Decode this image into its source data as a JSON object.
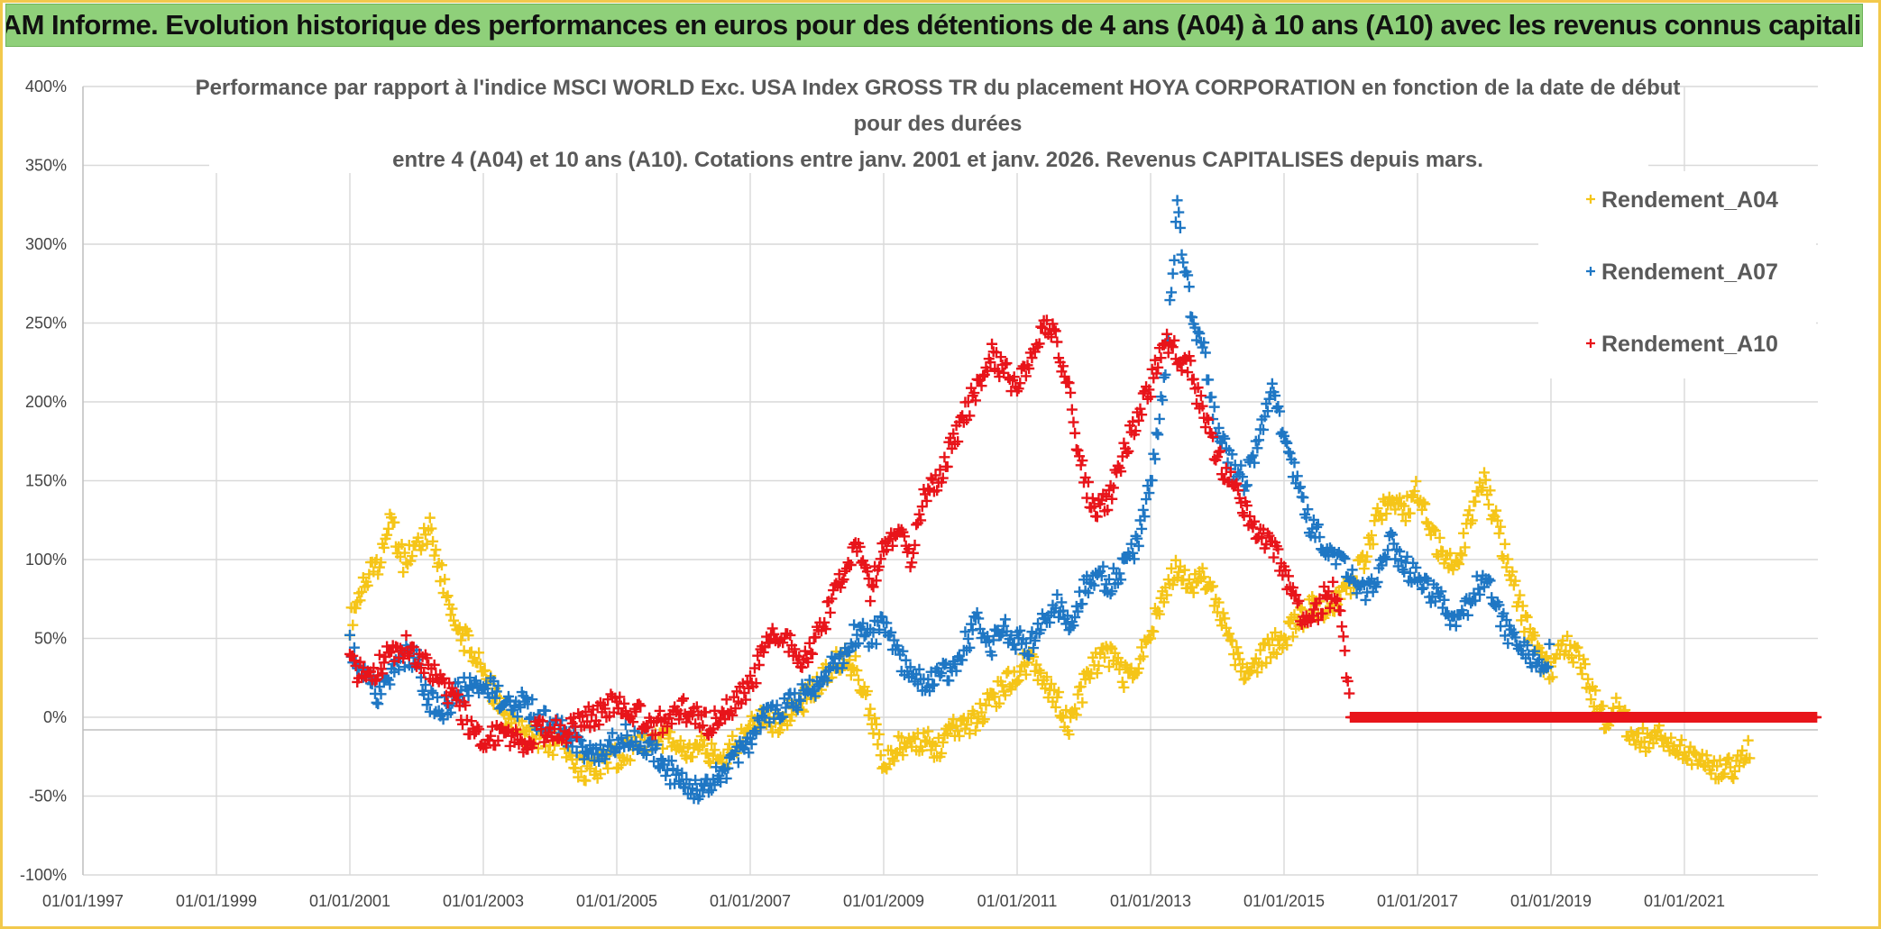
{
  "banner": {
    "text": "ADAM Informe. Evolution historique des performances en euros pour des détentions de 4 ans (A04) à 10 ans (A10) avec les revenus connus capitalisés"
  },
  "chart_data": {
    "type": "scatter",
    "title_lines": [
      "Performance par rapport à l'indice MSCI WORLD Exc. USA Index GROSS TR  du placement HOYA CORPORATION en fonction de la date de début",
      "pour des durées",
      "entre 4 (A04) et 10 ans (A10). Cotations entre janv. 2001 et janv. 2026. Revenus CAPITALISES depuis mars."
    ],
    "x_ticks": [
      "01/01/1997",
      "01/01/1999",
      "01/01/2001",
      "01/01/2003",
      "01/01/2005",
      "01/01/2007",
      "01/01/2009",
      "01/01/2011",
      "01/01/2013",
      "01/01/2015",
      "01/01/2017",
      "01/01/2019",
      "01/01/2021"
    ],
    "y_ticks": [
      "400%",
      "350%",
      "300%",
      "250%",
      "200%",
      "150%",
      "100%",
      "50%",
      "0%",
      "-50%",
      "-100%"
    ],
    "xlim": [
      1997.0,
      2023.0
    ],
    "ylim": [
      -100,
      400
    ],
    "grid": true,
    "legend_position": "top-right",
    "series": [
      {
        "name": "Rendement_A04",
        "color": "#f5c518",
        "marker": "+",
        "points": [
          [
            2001.0,
            60
          ],
          [
            2001.2,
            85
          ],
          [
            2001.4,
            95
          ],
          [
            2001.6,
            125
          ],
          [
            2001.8,
            100
          ],
          [
            2002.0,
            105
          ],
          [
            2002.2,
            120
          ],
          [
            2002.4,
            85
          ],
          [
            2002.6,
            55
          ],
          [
            2002.8,
            45
          ],
          [
            2003.0,
            30
          ],
          [
            2003.2,
            10
          ],
          [
            2003.4,
            -5
          ],
          [
            2003.6,
            -10
          ],
          [
            2003.8,
            -12
          ],
          [
            2004.0,
            -15
          ],
          [
            2004.2,
            -20
          ],
          [
            2004.4,
            -30
          ],
          [
            2004.6,
            -35
          ],
          [
            2004.8,
            -30
          ],
          [
            2005.0,
            -25
          ],
          [
            2005.2,
            -20
          ],
          [
            2005.4,
            -18
          ],
          [
            2005.6,
            -10
          ],
          [
            2005.8,
            -15
          ],
          [
            2006.0,
            -20
          ],
          [
            2006.2,
            -18
          ],
          [
            2006.4,
            -22
          ],
          [
            2006.6,
            -25
          ],
          [
            2006.8,
            -15
          ],
          [
            2007.0,
            -5
          ],
          [
            2007.2,
            0
          ],
          [
            2007.4,
            -5
          ],
          [
            2007.6,
            5
          ],
          [
            2007.8,
            10
          ],
          [
            2008.0,
            20
          ],
          [
            2008.2,
            30
          ],
          [
            2008.4,
            40
          ],
          [
            2008.6,
            30
          ],
          [
            2008.8,
            5
          ],
          [
            2009.0,
            -30
          ],
          [
            2009.2,
            -20
          ],
          [
            2009.4,
            -18
          ],
          [
            2009.6,
            -15
          ],
          [
            2009.8,
            -20
          ],
          [
            2010.0,
            -10
          ],
          [
            2010.2,
            -5
          ],
          [
            2010.4,
            0
          ],
          [
            2010.6,
            10
          ],
          [
            2010.8,
            20
          ],
          [
            2011.0,
            30
          ],
          [
            2011.2,
            35
          ],
          [
            2011.4,
            20
          ],
          [
            2011.6,
            10
          ],
          [
            2011.8,
            -5
          ],
          [
            2012.0,
            20
          ],
          [
            2012.2,
            35
          ],
          [
            2012.4,
            40
          ],
          [
            2012.6,
            25
          ],
          [
            2012.8,
            30
          ],
          [
            2013.0,
            55
          ],
          [
            2013.2,
            80
          ],
          [
            2013.4,
            95
          ],
          [
            2013.6,
            85
          ],
          [
            2013.8,
            90
          ],
          [
            2014.0,
            70
          ],
          [
            2014.2,
            45
          ],
          [
            2014.4,
            30
          ],
          [
            2014.6,
            35
          ],
          [
            2014.8,
            45
          ],
          [
            2015.0,
            50
          ],
          [
            2015.2,
            60
          ],
          [
            2015.4,
            70
          ],
          [
            2015.6,
            65
          ],
          [
            2015.8,
            75
          ],
          [
            2016.0,
            85
          ],
          [
            2016.2,
            100
          ],
          [
            2016.4,
            125
          ],
          [
            2016.6,
            140
          ],
          [
            2016.8,
            130
          ],
          [
            2017.0,
            145
          ],
          [
            2017.2,
            120
          ],
          [
            2017.4,
            100
          ],
          [
            2017.6,
            95
          ],
          [
            2017.8,
            130
          ],
          [
            2018.0,
            150
          ],
          [
            2018.2,
            120
          ],
          [
            2018.4,
            90
          ],
          [
            2018.6,
            60
          ],
          [
            2018.8,
            40
          ],
          [
            2019.0,
            30
          ],
          [
            2019.2,
            45
          ],
          [
            2019.4,
            40
          ],
          [
            2019.6,
            15
          ],
          [
            2019.8,
            0
          ],
          [
            2020.0,
            5
          ],
          [
            2020.2,
            -10
          ],
          [
            2020.4,
            -15
          ],
          [
            2020.6,
            -10
          ],
          [
            2020.8,
            -20
          ],
          [
            2021.0,
            -20
          ],
          [
            2021.2,
            -25
          ],
          [
            2021.4,
            -30
          ],
          [
            2021.6,
            -35
          ],
          [
            2021.8,
            -30
          ],
          [
            2022.0,
            -20
          ]
        ]
      },
      {
        "name": "Rendement_A07",
        "color": "#1f77c4",
        "marker": "+",
        "points": [
          [
            2001.0,
            45
          ],
          [
            2001.2,
            30
          ],
          [
            2001.4,
            15
          ],
          [
            2001.6,
            25
          ],
          [
            2001.8,
            40
          ],
          [
            2002.0,
            35
          ],
          [
            2002.2,
            10
          ],
          [
            2002.4,
            5
          ],
          [
            2002.6,
            15
          ],
          [
            2002.8,
            20
          ],
          [
            2003.0,
            25
          ],
          [
            2003.2,
            15
          ],
          [
            2003.4,
            5
          ],
          [
            2003.6,
            10
          ],
          [
            2003.8,
            0
          ],
          [
            2004.0,
            -5
          ],
          [
            2004.2,
            -10
          ],
          [
            2004.4,
            -15
          ],
          [
            2004.6,
            -25
          ],
          [
            2004.8,
            -20
          ],
          [
            2005.0,
            -15
          ],
          [
            2005.2,
            -10
          ],
          [
            2005.4,
            -15
          ],
          [
            2005.6,
            -25
          ],
          [
            2005.8,
            -35
          ],
          [
            2006.0,
            -40
          ],
          [
            2006.2,
            -45
          ],
          [
            2006.4,
            -40
          ],
          [
            2006.6,
            -35
          ],
          [
            2006.8,
            -25
          ],
          [
            2007.0,
            -15
          ],
          [
            2007.2,
            0
          ],
          [
            2007.4,
            5
          ],
          [
            2007.6,
            10
          ],
          [
            2007.8,
            15
          ],
          [
            2008.0,
            20
          ],
          [
            2008.2,
            30
          ],
          [
            2008.4,
            40
          ],
          [
            2008.6,
            55
          ],
          [
            2008.8,
            50
          ],
          [
            2009.0,
            60
          ],
          [
            2009.2,
            40
          ],
          [
            2009.4,
            30
          ],
          [
            2009.6,
            20
          ],
          [
            2009.8,
            25
          ],
          [
            2010.0,
            30
          ],
          [
            2010.2,
            45
          ],
          [
            2010.4,
            60
          ],
          [
            2010.6,
            45
          ],
          [
            2010.8,
            55
          ],
          [
            2011.0,
            50
          ],
          [
            2011.2,
            45
          ],
          [
            2011.4,
            65
          ],
          [
            2011.6,
            70
          ],
          [
            2011.8,
            60
          ],
          [
            2012.0,
            80
          ],
          [
            2012.2,
            90
          ],
          [
            2012.4,
            85
          ],
          [
            2012.6,
            95
          ],
          [
            2012.8,
            110
          ],
          [
            2013.0,
            150
          ],
          [
            2013.2,
            210
          ],
          [
            2013.4,
            320
          ],
          [
            2013.6,
            260
          ],
          [
            2013.8,
            230
          ],
          [
            2014.0,
            180
          ],
          [
            2014.2,
            160
          ],
          [
            2014.4,
            150
          ],
          [
            2014.6,
            170
          ],
          [
            2014.8,
            210
          ],
          [
            2015.0,
            180
          ],
          [
            2015.2,
            150
          ],
          [
            2015.4,
            120
          ],
          [
            2015.6,
            110
          ],
          [
            2015.8,
            100
          ],
          [
            2016.0,
            90
          ],
          [
            2016.2,
            80
          ],
          [
            2016.4,
            90
          ],
          [
            2016.6,
            110
          ],
          [
            2016.8,
            95
          ],
          [
            2017.0,
            90
          ],
          [
            2017.2,
            80
          ],
          [
            2017.4,
            70
          ],
          [
            2017.6,
            60
          ],
          [
            2017.8,
            75
          ],
          [
            2018.0,
            90
          ],
          [
            2018.2,
            70
          ],
          [
            2018.4,
            50
          ],
          [
            2018.6,
            40
          ],
          [
            2018.8,
            35
          ],
          [
            2019.0,
            40
          ]
        ]
      },
      {
        "name": "Rendement_A10",
        "color": "#e8141a",
        "marker": "+",
        "points": [
          [
            2001.0,
            35
          ],
          [
            2001.2,
            25
          ],
          [
            2001.4,
            30
          ],
          [
            2001.6,
            40
          ],
          [
            2001.8,
            45
          ],
          [
            2002.0,
            40
          ],
          [
            2002.2,
            30
          ],
          [
            2002.4,
            20
          ],
          [
            2002.6,
            10
          ],
          [
            2002.8,
            -5
          ],
          [
            2003.0,
            -15
          ],
          [
            2003.2,
            -10
          ],
          [
            2003.4,
            -12
          ],
          [
            2003.6,
            -15
          ],
          [
            2003.8,
            -10
          ],
          [
            2004.0,
            -8
          ],
          [
            2004.2,
            -12
          ],
          [
            2004.4,
            -5
          ],
          [
            2004.6,
            0
          ],
          [
            2004.8,
            5
          ],
          [
            2005.0,
            10
          ],
          [
            2005.2,
            5
          ],
          [
            2005.4,
            0
          ],
          [
            2005.6,
            -5
          ],
          [
            2005.8,
            0
          ],
          [
            2006.0,
            5
          ],
          [
            2006.2,
            0
          ],
          [
            2006.4,
            -5
          ],
          [
            2006.6,
            5
          ],
          [
            2006.8,
            10
          ],
          [
            2007.0,
            20
          ],
          [
            2007.2,
            40
          ],
          [
            2007.4,
            55
          ],
          [
            2007.6,
            45
          ],
          [
            2007.8,
            35
          ],
          [
            2008.0,
            50
          ],
          [
            2008.2,
            70
          ],
          [
            2008.4,
            90
          ],
          [
            2008.6,
            110
          ],
          [
            2008.8,
            80
          ],
          [
            2009.0,
            110
          ],
          [
            2009.2,
            120
          ],
          [
            2009.4,
            100
          ],
          [
            2009.6,
            140
          ],
          [
            2009.8,
            150
          ],
          [
            2010.0,
            170
          ],
          [
            2010.2,
            190
          ],
          [
            2010.4,
            210
          ],
          [
            2010.6,
            230
          ],
          [
            2010.8,
            220
          ],
          [
            2011.0,
            210
          ],
          [
            2011.2,
            230
          ],
          [
            2011.4,
            250
          ],
          [
            2011.6,
            240
          ],
          [
            2011.8,
            200
          ],
          [
            2012.0,
            150
          ],
          [
            2012.2,
            130
          ],
          [
            2012.4,
            140
          ],
          [
            2012.6,
            170
          ],
          [
            2012.8,
            190
          ],
          [
            2013.0,
            210
          ],
          [
            2013.2,
            240
          ],
          [
            2013.4,
            230
          ],
          [
            2013.6,
            220
          ],
          [
            2013.8,
            190
          ],
          [
            2014.0,
            165
          ],
          [
            2014.2,
            150
          ],
          [
            2014.4,
            130
          ],
          [
            2014.6,
            120
          ],
          [
            2014.8,
            110
          ],
          [
            2015.0,
            90
          ],
          [
            2015.2,
            70
          ],
          [
            2015.4,
            60
          ],
          [
            2015.6,
            75
          ],
          [
            2015.8,
            80
          ],
          [
            2016.0,
            0
          ],
          [
            2016.5,
            0
          ],
          [
            2017.0,
            0
          ],
          [
            2017.5,
            0
          ],
          [
            2018.0,
            0
          ],
          [
            2018.5,
            0
          ],
          [
            2019.0,
            0
          ],
          [
            2019.5,
            0
          ],
          [
            2020.0,
            0
          ],
          [
            2020.5,
            0
          ],
          [
            2021.0,
            0
          ],
          [
            2021.5,
            0
          ],
          [
            2022.0,
            0
          ],
          [
            2022.5,
            0
          ],
          [
            2023.0,
            0
          ]
        ]
      }
    ]
  }
}
